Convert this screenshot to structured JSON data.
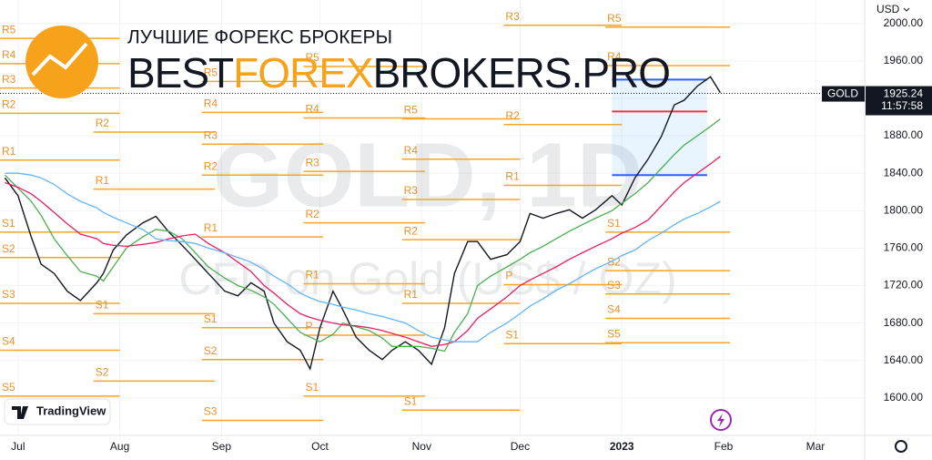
{
  "chart_data": {
    "type": "line",
    "symbol": "GOLD",
    "currency": "USD",
    "last_price": 1925.24,
    "countdown": "11:57:58",
    "watermark": "GOLD, 1D",
    "watermark_subtitle": "CFD on Gold (US$ / OZ)",
    "brand_tagline": "ЛУЧШИЕ ФОРЕКС БРОКЕРЫ",
    "brand_parts": [
      "BEST",
      "FOREX",
      "BROKERS.PRO"
    ],
    "badge": "TradingView",
    "xlim": [
      -5.5,
      258
    ],
    "ylim": [
      1560,
      2025
    ],
    "xticks": [
      {
        "value": 0,
        "label": "Jul"
      },
      {
        "value": 31,
        "label": "Aug"
      },
      {
        "value": 62,
        "label": "Sep"
      },
      {
        "value": 92,
        "label": "Oct"
      },
      {
        "value": 123,
        "label": "Nov"
      },
      {
        "value": 153,
        "label": "Dec"
      },
      {
        "value": 184,
        "label": "2023"
      },
      {
        "value": 215,
        "label": "Feb"
      },
      {
        "value": 243,
        "label": "Mar"
      }
    ],
    "yticks": [
      {
        "value": 1600,
        "label": "1600.00"
      },
      {
        "value": 1640,
        "label": "1640.00"
      },
      {
        "value": 1680,
        "label": "1680.00"
      },
      {
        "value": 1720,
        "label": "1720.00"
      },
      {
        "value": 1760,
        "label": "1760.00"
      },
      {
        "value": 1800,
        "label": "1800.00"
      },
      {
        "value": 1840,
        "label": "1840.00"
      },
      {
        "value": 1880,
        "label": "1880.00"
      },
      {
        "value": 1920,
        "label": "1920.00"
      },
      {
        "value": 1960,
        "label": "1960.00"
      },
      {
        "value": 2000,
        "label": "2000.00"
      }
    ],
    "grid": true,
    "x": [
      -4,
      0,
      4,
      7,
      11,
      15,
      19,
      24,
      26,
      29,
      33,
      38,
      42,
      46,
      50,
      54,
      58,
      63,
      67,
      71,
      75,
      78,
      82,
      86,
      89,
      92,
      96,
      99,
      103,
      107,
      111,
      114,
      118,
      122,
      126,
      130,
      133,
      137,
      140,
      144,
      149,
      153,
      156,
      160,
      164,
      168,
      172,
      176,
      181,
      184,
      188,
      192,
      196,
      200,
      203,
      207,
      211,
      214
    ],
    "series": [
      {
        "color": "#131722",
        "values": [
          1835,
          1816,
          1772,
          1743,
          1733,
          1714,
          1704,
          1723,
          1733,
          1758,
          1774,
          1787,
          1794,
          1777,
          1763,
          1748,
          1733,
          1714,
          1709,
          1723,
          1714,
          1680,
          1660,
          1651,
          1631,
          1675,
          1714,
          1694,
          1665,
          1651,
          1641,
          1651,
          1660,
          1651,
          1636,
          1675,
          1733,
          1767,
          1767,
          1748,
          1753,
          1767,
          1797,
          1792,
          1797,
          1801,
          1792,
          1801,
          1816,
          1806,
          1835,
          1855,
          1879,
          1913,
          1918,
          1933,
          1943,
          1926
        ]
      },
      {
        "color": "#4caf50",
        "values": [
          1838,
          1824,
          1810,
          1795,
          1770,
          1752,
          1735,
          1730,
          1725,
          1740,
          1760,
          1772,
          1780,
          1778,
          1770,
          1755,
          1740,
          1728,
          1720,
          1715,
          1708,
          1700,
          1685,
          1670,
          1665,
          1660,
          1668,
          1680,
          1676,
          1672,
          1664,
          1655,
          1655,
          1655,
          1653,
          1650,
          1670,
          1690,
          1720,
          1730,
          1740,
          1748,
          1755,
          1762,
          1770,
          1778,
          1785,
          1792,
          1800,
          1808,
          1818,
          1830,
          1845,
          1860,
          1870,
          1880,
          1890,
          1898
        ]
      },
      {
        "color": "#e91e63",
        "values": [
          1830,
          1825,
          1818,
          1810,
          1798,
          1786,
          1775,
          1770,
          1765,
          1763,
          1762,
          1764,
          1766,
          1770,
          1773,
          1775,
          1765,
          1755,
          1745,
          1735,
          1720,
          1712,
          1700,
          1690,
          1686,
          1683,
          1680,
          1678,
          1677,
          1675,
          1672,
          1669,
          1665,
          1660,
          1655,
          1657,
          1660,
          1672,
          1685,
          1695,
          1708,
          1720,
          1726,
          1733,
          1740,
          1748,
          1755,
          1762,
          1770,
          1776,
          1782,
          1790,
          1805,
          1820,
          1830,
          1840,
          1850,
          1858
        ]
      },
      {
        "color": "#64b5f6",
        "values": [
          1840,
          1840,
          1838,
          1835,
          1828,
          1818,
          1810,
          1803,
          1798,
          1793,
          1787,
          1780,
          1770,
          1768,
          1767,
          1765,
          1760,
          1755,
          1750,
          1745,
          1737,
          1730,
          1722,
          1712,
          1707,
          1703,
          1700,
          1697,
          1694,
          1690,
          1687,
          1684,
          1680,
          1672,
          1665,
          1662,
          1660,
          1660,
          1660,
          1670,
          1680,
          1690,
          1698,
          1706,
          1715,
          1722,
          1730,
          1738,
          1746,
          1752,
          1758,
          1768,
          1776,
          1785,
          1791,
          1797,
          1804,
          1810
        ]
      }
    ],
    "pivot_color": "#f5a623",
    "pivots": [
      {
        "xrange": [
          -5.5,
          31
        ],
        "levels": [
          {
            "label": "R5",
            "value": 1984
          },
          {
            "label": "R4",
            "value": 1957
          },
          {
            "label": "R3",
            "value": 1931
          },
          {
            "label": "R2",
            "value": 1904
          },
          {
            "label": "R1",
            "value": 1854
          },
          {
            "label": "S1",
            "value": 1777
          },
          {
            "label": "S2",
            "value": 1750
          },
          {
            "label": "S3",
            "value": 1701
          },
          {
            "label": "S4",
            "value": 1651
          },
          {
            "label": "S5",
            "value": 1602
          }
        ]
      },
      {
        "xrange": [
          23,
          60
        ],
        "levels": [
          {
            "label": "R2",
            "value": 1884
          },
          {
            "label": "R1",
            "value": 1823
          },
          {
            "label": "S1",
            "value": 1690
          },
          {
            "label": "S2",
            "value": 1618
          }
        ]
      },
      {
        "xrange": [
          56,
          93
        ],
        "levels": [
          {
            "label": "R5",
            "value": 1938
          },
          {
            "label": "R4",
            "value": 1905
          },
          {
            "label": "R3",
            "value": 1871
          },
          {
            "label": "R2",
            "value": 1838
          },
          {
            "label": "R1",
            "value": 1772
          },
          {
            "label": "S1",
            "value": 1675
          },
          {
            "label": "S2",
            "value": 1641
          },
          {
            "label": "S3",
            "value": 1576
          }
        ]
      },
      {
        "xrange": [
          87,
          124
        ],
        "levels": [
          {
            "label": "R5",
            "value": 1954
          },
          {
            "label": "R4",
            "value": 1899
          },
          {
            "label": "R3",
            "value": 1842
          },
          {
            "label": "R2",
            "value": 1787
          },
          {
            "label": "R1",
            "value": 1722
          },
          {
            "label": "P",
            "value": 1667
          },
          {
            "label": "S1",
            "value": 1602
          }
        ]
      },
      {
        "xrange": [
          117,
          153
        ],
        "levels": [
          {
            "label": "R5",
            "value": 1898
          },
          {
            "label": "R4",
            "value": 1855
          },
          {
            "label": "R3",
            "value": 1812
          },
          {
            "label": "R2",
            "value": 1769
          },
          {
            "label": "R1",
            "value": 1701
          },
          {
            "label": "S1",
            "value": 1587
          }
        ]
      },
      {
        "xrange": [
          148,
          184
        ],
        "levels": [
          {
            "label": "R3",
            "value": 1998
          },
          {
            "label": "R2",
            "value": 1892
          },
          {
            "label": "R1",
            "value": 1827
          },
          {
            "label": "P",
            "value": 1721
          },
          {
            "label": "S1",
            "value": 1658
          }
        ]
      },
      {
        "xrange": [
          179,
          217
        ],
        "levels": [
          {
            "label": "R5",
            "value": 1996
          },
          {
            "label": "R4",
            "value": 1955
          },
          {
            "label": "S1",
            "value": 1777
          },
          {
            "label": "S2",
            "value": 1736
          },
          {
            "label": "S3",
            "value": 1711
          },
          {
            "label": "S4",
            "value": 1685
          },
          {
            "label": "S5",
            "value": 1659
          }
        ]
      }
    ],
    "volume_profile": {
      "xrange": [
        181,
        210
      ],
      "high": 1940,
      "poc": 1906,
      "low": 1838
    }
  }
}
